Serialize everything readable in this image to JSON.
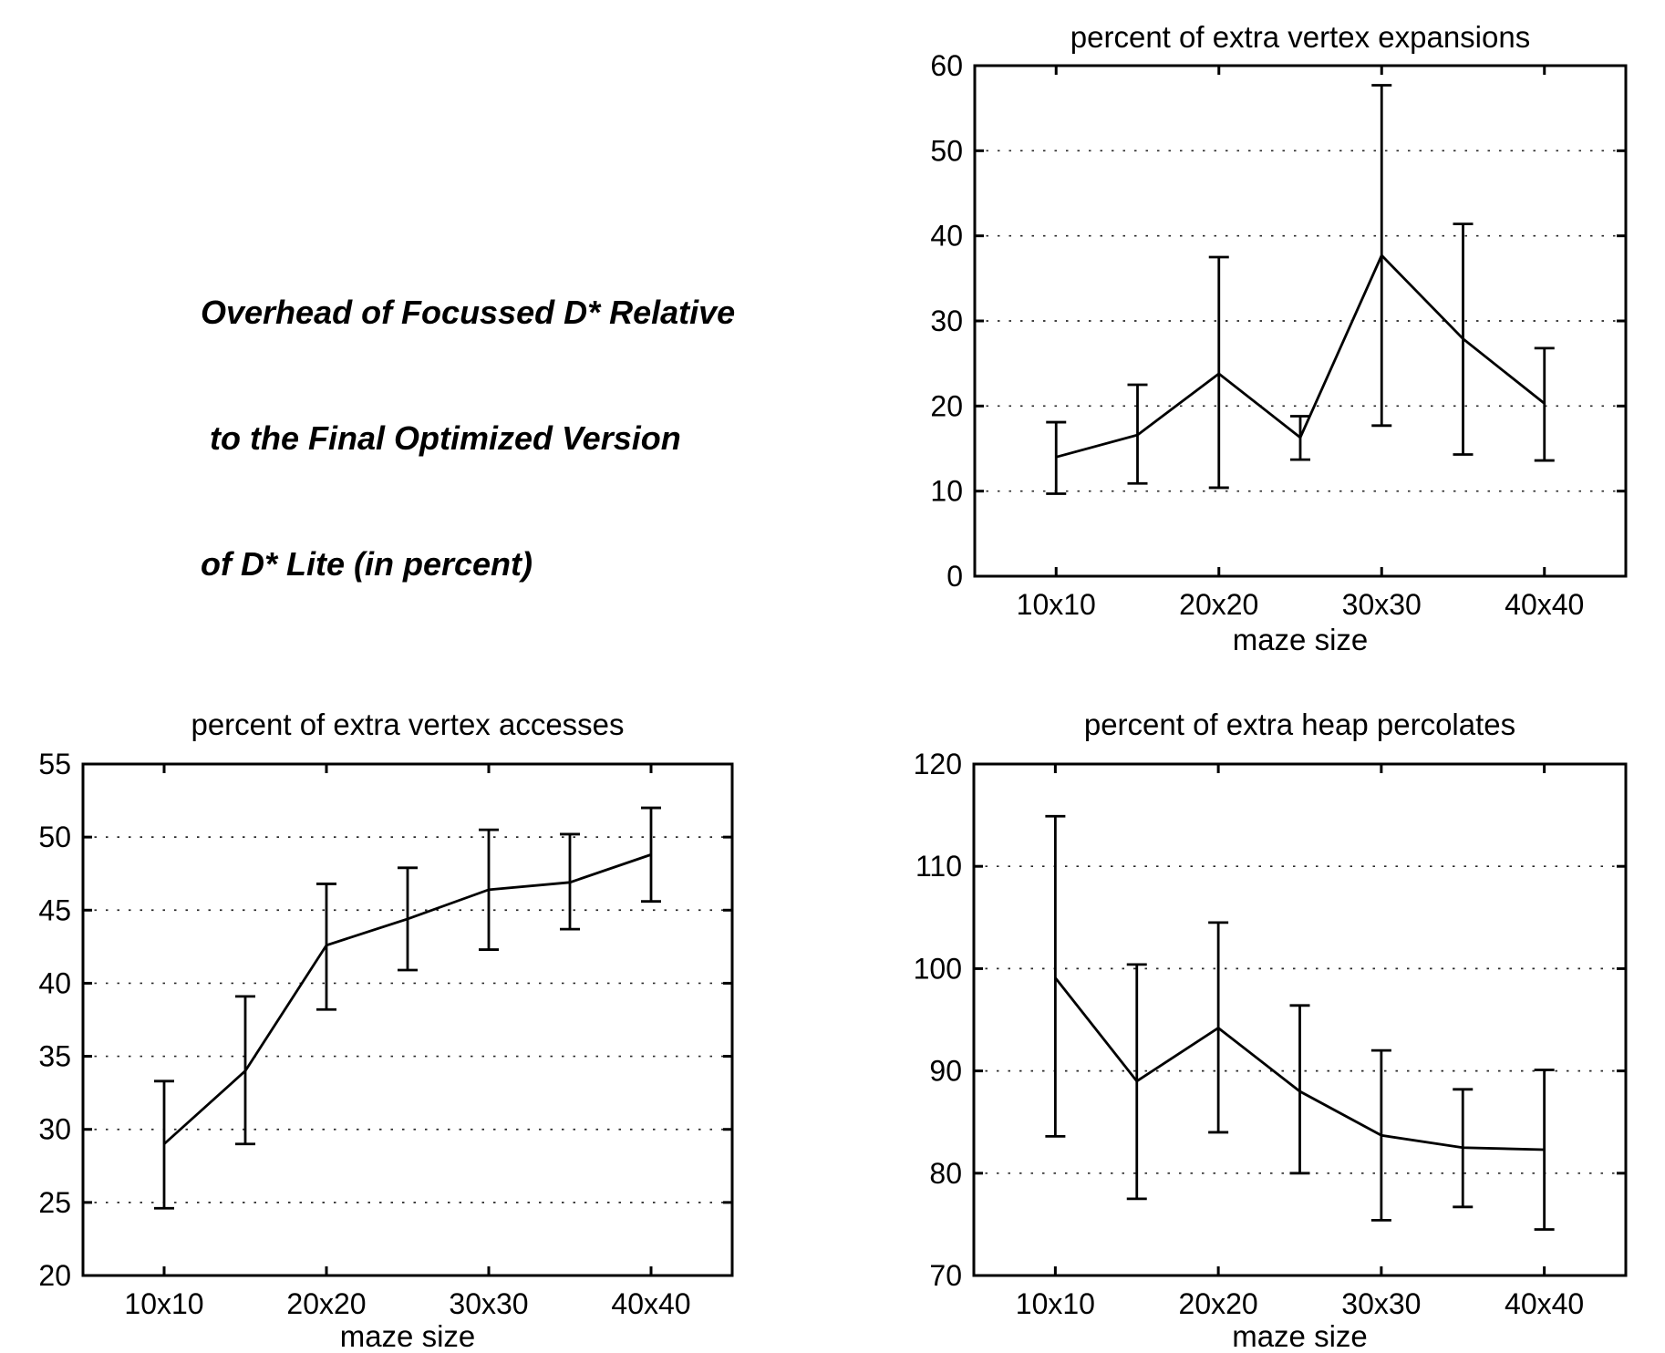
{
  "figure": {
    "title_lines": [
      "Overhead of Focussed D* Relative",
      " to the Final Optimized Version",
      "of D* Lite (in percent)"
    ]
  },
  "chart_data": [
    {
      "id": "vertex-expansions",
      "type": "line",
      "title": "percent of extra vertex expansions",
      "xlabel": "maze size",
      "ylabel": "",
      "x": [
        10,
        15,
        20,
        25,
        30,
        35,
        40
      ],
      "xtick_values": [
        10,
        20,
        30,
        40
      ],
      "xtick_labels": [
        "10x10",
        "20x20",
        "30x30",
        "40x40"
      ],
      "xlim": [
        5,
        45
      ],
      "ylim": [
        0,
        60
      ],
      "yticks": [
        0,
        10,
        20,
        30,
        40,
        50,
        60
      ],
      "values": [
        14.0,
        16.6,
        23.8,
        16.3,
        37.7,
        27.9,
        20.3
      ],
      "err_low": [
        9.7,
        10.9,
        10.4,
        13.7,
        17.7,
        14.3,
        13.6
      ],
      "err_high": [
        18.1,
        22.5,
        37.5,
        18.8,
        57.7,
        41.4,
        26.8
      ],
      "grid": "horizontal-dotted",
      "line_color": "#000000"
    },
    {
      "id": "vertex-accesses",
      "type": "line",
      "title": "percent of extra vertex accesses",
      "xlabel": "maze size",
      "ylabel": "",
      "x": [
        10,
        15,
        20,
        25,
        30,
        35,
        40
      ],
      "xtick_values": [
        10,
        20,
        30,
        40
      ],
      "xtick_labels": [
        "10x10",
        "20x20",
        "30x30",
        "40x40"
      ],
      "xlim": [
        5,
        45
      ],
      "ylim": [
        20,
        55
      ],
      "yticks": [
        20,
        25,
        30,
        35,
        40,
        45,
        50,
        55
      ],
      "values": [
        29.0,
        34.0,
        42.6,
        44.4,
        46.4,
        46.9,
        48.8
      ],
      "err_low": [
        24.6,
        29.0,
        38.2,
        40.9,
        42.3,
        43.7,
        45.6
      ],
      "err_high": [
        33.3,
        39.1,
        46.8,
        47.9,
        50.5,
        50.2,
        52.0
      ],
      "grid": "horizontal-dotted",
      "line_color": "#000000"
    },
    {
      "id": "heap-percolates",
      "type": "line",
      "title": "percent of extra heap percolates",
      "xlabel": "maze size",
      "ylabel": "",
      "x": [
        10,
        15,
        20,
        25,
        30,
        35,
        40
      ],
      "xtick_values": [
        10,
        20,
        30,
        40
      ],
      "xtick_labels": [
        "10x10",
        "20x20",
        "30x30",
        "40x40"
      ],
      "xlim": [
        5,
        45
      ],
      "ylim": [
        70,
        120
      ],
      "yticks": [
        70,
        80,
        90,
        100,
        110,
        120
      ],
      "values": [
        99.1,
        89.0,
        94.2,
        88.0,
        83.7,
        82.5,
        82.3
      ],
      "err_low": [
        83.6,
        77.5,
        84.0,
        80.0,
        75.4,
        76.7,
        74.5
      ],
      "err_high": [
        114.9,
        100.4,
        104.5,
        96.4,
        92.0,
        88.2,
        90.1
      ],
      "grid": "horizontal-dotted",
      "line_color": "#000000"
    }
  ]
}
